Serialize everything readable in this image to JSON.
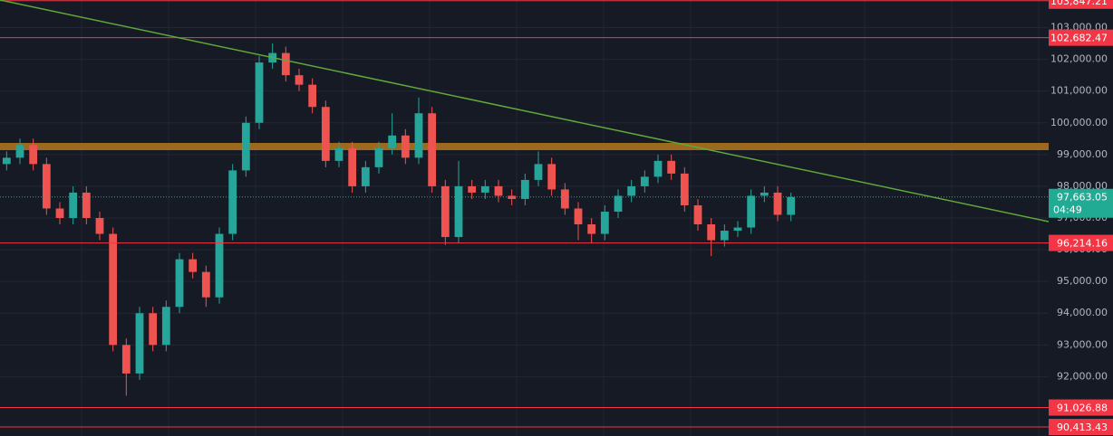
{
  "chart_data": {
    "type": "candlestick",
    "ylim": [
      90130,
      103870
    ],
    "yticks": [
      {
        "value": 92000,
        "label": "92,000.00"
      },
      {
        "value": 93000,
        "label": "93,000.00"
      },
      {
        "value": 94000,
        "label": "94,000.00"
      },
      {
        "value": 95000,
        "label": "95,000.00"
      },
      {
        "value": 96000,
        "label": "96,000.00"
      },
      {
        "value": 97000,
        "label": "97,000.00"
      },
      {
        "value": 98000,
        "label": "98,000.00"
      },
      {
        "value": 99000,
        "label": "99,000.00"
      },
      {
        "value": 100000,
        "label": "100,000.00"
      },
      {
        "value": 101000,
        "label": "101,000.00"
      },
      {
        "value": 102000,
        "label": "102,000.00"
      },
      {
        "value": 103000,
        "label": "103,000.00"
      }
    ],
    "grid": true,
    "up_color": "#26a69a",
    "down_color": "#ef5350",
    "series": {
      "open": [
        98700,
        98900,
        99300,
        98700,
        97300,
        97000,
        97800,
        97000,
        96500,
        93000,
        92100,
        94000,
        93000,
        94200,
        95700,
        95300,
        94500,
        96500,
        98500,
        100000,
        101900,
        102200,
        101500,
        101200,
        100500,
        98800,
        99200,
        98000,
        98600,
        99200,
        99600,
        98900,
        100300,
        98000,
        96400,
        98000,
        97800,
        98000,
        97700,
        97600,
        98200,
        98700,
        97900,
        97300,
        96800,
        96500,
        97200,
        97700,
        98000,
        98300,
        98800,
        98400,
        97400,
        96800,
        96300,
        96600,
        96700,
        97700,
        97800,
        97100
      ],
      "high": [
        99100,
        99500,
        99500,
        98900,
        97500,
        98000,
        98000,
        97200,
        96700,
        93200,
        94200,
        94200,
        94400,
        95900,
        95900,
        95500,
        96700,
        98700,
        100200,
        102100,
        102500,
        102400,
        101700,
        101400,
        100700,
        99400,
        99400,
        98800,
        99400,
        100300,
        99800,
        100800,
        100500,
        98200,
        98800,
        98200,
        98200,
        98200,
        97900,
        98400,
        99100,
        98900,
        98100,
        97500,
        97000,
        97400,
        97900,
        98200,
        98500,
        99000,
        99000,
        98600,
        97600,
        97000,
        96800,
        96900,
        97900,
        98000,
        98000,
        97800
      ],
      "low": [
        98500,
        98700,
        98500,
        97100,
        96800,
        96800,
        96800,
        96300,
        92800,
        91400,
        91900,
        92800,
        92800,
        94000,
        95100,
        94200,
        94300,
        96300,
        98300,
        99800,
        101700,
        101300,
        101000,
        100300,
        98600,
        98600,
        97800,
        97800,
        98400,
        99000,
        98700,
        98700,
        97800,
        96150,
        96200,
        97600,
        97600,
        97500,
        97400,
        97400,
        98000,
        97700,
        97100,
        96300,
        96200,
        96300,
        97000,
        97500,
        97800,
        98100,
        98200,
        97200,
        96600,
        95800,
        96100,
        96400,
        96500,
        97500,
        96900,
        96900
      ],
      "close": [
        98900,
        99300,
        98700,
        97300,
        97000,
        97800,
        97000,
        96500,
        93000,
        92100,
        94000,
        93000,
        94200,
        95700,
        95300,
        94500,
        96500,
        98500,
        100000,
        101900,
        102200,
        101500,
        101200,
        100500,
        98800,
        99200,
        98000,
        98600,
        99200,
        99600,
        98900,
        100300,
        98000,
        96400,
        98000,
        97800,
        98000,
        97700,
        97600,
        98200,
        98700,
        97900,
        97300,
        96800,
        96500,
        97200,
        97700,
        98000,
        98300,
        98800,
        98400,
        97400,
        96800,
        96300,
        96600,
        96700,
        97700,
        97800,
        97100,
        97663.05
      ]
    },
    "price_lines": [
      {
        "value": 103847.21,
        "label": "103,847.21"
      },
      {
        "value": 102682.47,
        "label": "102,682.47"
      },
      {
        "value": 96214.16,
        "label": "96,214.16"
      },
      {
        "value": 91026.88,
        "label": "91,026.88"
      },
      {
        "value": 90413.43,
        "label": "90,413.43"
      }
    ],
    "price_line_color": "#f23645",
    "last_price": {
      "value": 97663.05,
      "label": "97,663.05",
      "countdown": "04:49",
      "color": "#22ab94"
    }
  }
}
